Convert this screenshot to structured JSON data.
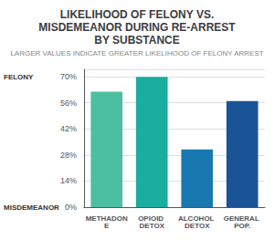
{
  "chart_data": {
    "type": "bar",
    "title": "LIKELIHOOD OF FELONY VS.\nMISDEMEANOR DURING RE-ARREST\nBY SUBSTANCE",
    "subtitle": "LARGER VALUES INDICATE GREATER LIKELIHOOD OF FELONY ARREST",
    "categories": [
      "METHADONE",
      "OPIOID DETOX",
      "ALCOHOL DETOX",
      "GENERAL POP."
    ],
    "values": [
      62,
      70,
      31,
      57
    ],
    "colors": [
      "#4bbfa0",
      "#1aada0",
      "#1a78b0",
      "#1a5496"
    ],
    "ylim": [
      0,
      74
    ],
    "yticks": [
      {
        "value": 0,
        "label": "0%"
      },
      {
        "value": 14,
        "label": "14%"
      },
      {
        "value": 28,
        "label": "28%"
      },
      {
        "value": 42,
        "label": "42%"
      },
      {
        "value": 56,
        "label": "56%"
      },
      {
        "value": 70,
        "label": "70%"
      }
    ],
    "grid": true,
    "annotations": [
      {
        "text": "FELONY",
        "y": 70
      },
      {
        "text": "MISDEMEANOR",
        "y": 0
      }
    ]
  }
}
